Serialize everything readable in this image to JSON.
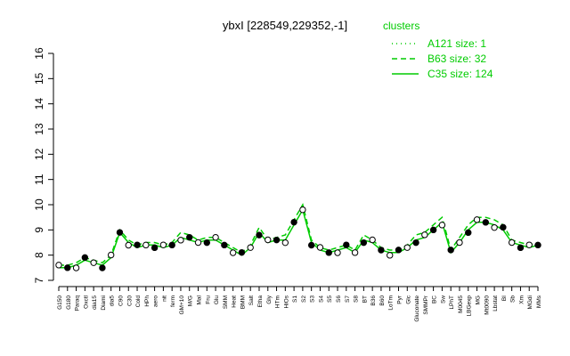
{
  "chart_data": {
    "type": "line",
    "title": "ybxI [228549,229352,-1]",
    "xlabel": "",
    "ylabel": "",
    "ylim": [
      7,
      16
    ],
    "yticks": [
      7,
      8,
      9,
      10,
      11,
      12,
      13,
      14,
      15,
      16
    ],
    "grid": false,
    "legend": {
      "title": "clusters",
      "position": "top-right",
      "entries": [
        {
          "label": "A121 size: 1",
          "style": "dotted"
        },
        {
          "label": "B63 size: 32",
          "style": "dashed"
        },
        {
          "label": "C35 size: 124",
          "style": "solid"
        }
      ]
    },
    "x_tick_labels": [
      "G150",
      "G180",
      "Paraq",
      "Oxctl",
      "dia15",
      "Diami",
      "dia5",
      "C90",
      "C30",
      "Cold",
      "HPh",
      "aero",
      "nit",
      "ferm",
      "GM+10",
      "M/G",
      "Mal",
      "Fru",
      "Glu",
      "SMM",
      "Heat",
      "BMM",
      "Salt",
      "Etha",
      "Gly",
      "HTm",
      "HiOs",
      "S1",
      "S2",
      "S3",
      "S4",
      "S5",
      "S6",
      "S7",
      "S8",
      "BT",
      "B36",
      "B60",
      "LoTm",
      "Pyr",
      "Glc",
      "Gluconate",
      "SMMPr",
      "BC",
      "Sw",
      "LPhT",
      "M0045",
      "LBGexp",
      "MG",
      "Mt0090",
      "Lbstat",
      "BI",
      "Sb",
      "Xm",
      "MGdi",
      "MMs"
    ],
    "series": [
      {
        "name": "C35",
        "style": "solid",
        "values": [
          7.5,
          7.5,
          7.6,
          7.8,
          7.7,
          7.6,
          7.9,
          8.9,
          8.5,
          8.3,
          8.4,
          8.4,
          8.3,
          8.4,
          8.7,
          8.6,
          8.5,
          8.6,
          8.6,
          8.4,
          8.2,
          8.0,
          8.3,
          8.9,
          8.5,
          8.6,
          8.6,
          9.2,
          9.8,
          8.5,
          8.2,
          8.1,
          8.2,
          8.3,
          8.1,
          8.6,
          8.5,
          8.2,
          8.1,
          8.1,
          8.3,
          8.6,
          8.7,
          9.0,
          9.3,
          8.1,
          8.5,
          9.0,
          9.3,
          9.3,
          9.2,
          9.0,
          8.5,
          8.4,
          8.3,
          8.4
        ]
      },
      {
        "name": "B63",
        "style": "dashed",
        "values": [
          7.6,
          7.6,
          7.7,
          7.9,
          7.8,
          7.7,
          8.0,
          9.0,
          8.6,
          8.4,
          8.5,
          8.5,
          8.4,
          8.5,
          8.9,
          8.8,
          8.6,
          8.7,
          8.7,
          8.5,
          8.3,
          8.1,
          8.4,
          9.1,
          8.6,
          8.7,
          8.8,
          9.4,
          10.0,
          8.6,
          8.3,
          8.2,
          8.3,
          8.4,
          8.2,
          8.8,
          8.6,
          8.3,
          8.2,
          8.2,
          8.4,
          8.8,
          8.9,
          9.2,
          9.5,
          8.2,
          8.7,
          9.2,
          9.5,
          9.5,
          9.4,
          9.2,
          8.6,
          8.5,
          8.4,
          8.5
        ]
      }
    ]
  }
}
